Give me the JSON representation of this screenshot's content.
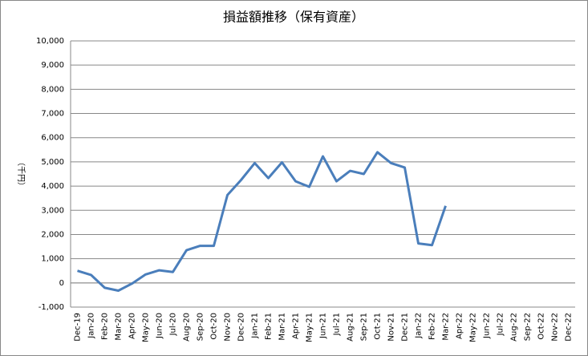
{
  "chart_data": {
    "type": "line",
    "title": "損益額推移（保有資産）",
    "y_label": "（千円）",
    "categories": [
      "Dec-19",
      "Jan-20",
      "Feb-20",
      "Mar-20",
      "Apr-20",
      "May-20",
      "Jun-20",
      "Jul-20",
      "Aug-20",
      "Sep-20",
      "Oct-20",
      "Nov-20",
      "Dec-20",
      "Jan-21",
      "Feb-21",
      "Mar-21",
      "Apr-21",
      "May-21",
      "Jun-21",
      "Jul-21",
      "Aug-21",
      "Sep-21",
      "Oct-21",
      "Nov-21",
      "Dec-21",
      "Jan-22",
      "Feb-22",
      "Mar-22",
      "Apr-22",
      "May-22",
      "Jun-22",
      "Jul-22",
      "Aug-22",
      "Sep-22",
      "Oct-22",
      "Nov-22",
      "Dec-22"
    ],
    "series": [
      {
        "name": "損益額",
        "color": "#4a7ebb",
        "values": [
          500,
          330,
          -200,
          -320,
          -30,
          350,
          520,
          450,
          1350,
          1530,
          1530,
          3630,
          4250,
          4950,
          4330,
          4980,
          4200,
          3970,
          5230,
          4200,
          4630,
          4500,
          5400,
          4950,
          4770,
          1630,
          1560,
          3180,
          null,
          null,
          null,
          null,
          null,
          null,
          null,
          null,
          null
        ]
      }
    ],
    "ylim": [
      -1000,
      10000
    ],
    "yticks": [
      {
        "value": -1000,
        "label": "-1,000"
      },
      0,
      {
        "value": 1000,
        "label": "1,000"
      },
      {
        "value": 2000,
        "label": "2,000"
      },
      {
        "value": 3000,
        "label": "3,000"
      },
      {
        "value": 4000,
        "label": "4,000"
      },
      {
        "value": 5000,
        "label": "5,000"
      },
      {
        "value": 6000,
        "label": "6,000"
      },
      {
        "value": 7000,
        "label": "7,000"
      },
      {
        "value": 8000,
        "label": "8,000"
      },
      {
        "value": 9000,
        "label": "9,000"
      },
      {
        "value": 10000,
        "label": "10,000"
      }
    ],
    "grid": true
  }
}
